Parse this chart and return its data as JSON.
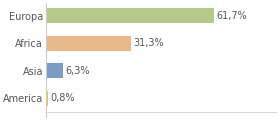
{
  "categories": [
    "America",
    "Asia",
    "Africa",
    "Europa"
  ],
  "values": [
    0.8,
    6.3,
    31.3,
    61.7
  ],
  "labels": [
    "0,8%",
    "6,3%",
    "31,3%",
    "61,7%"
  ],
  "bar_colors": [
    "#e8c84a",
    "#7a9dc5",
    "#e8b98a",
    "#b5c98a"
  ],
  "background_color": "#ffffff",
  "xlim": [
    0,
    85
  ],
  "label_fontsize": 7,
  "tick_fontsize": 7,
  "bar_height": 0.55
}
